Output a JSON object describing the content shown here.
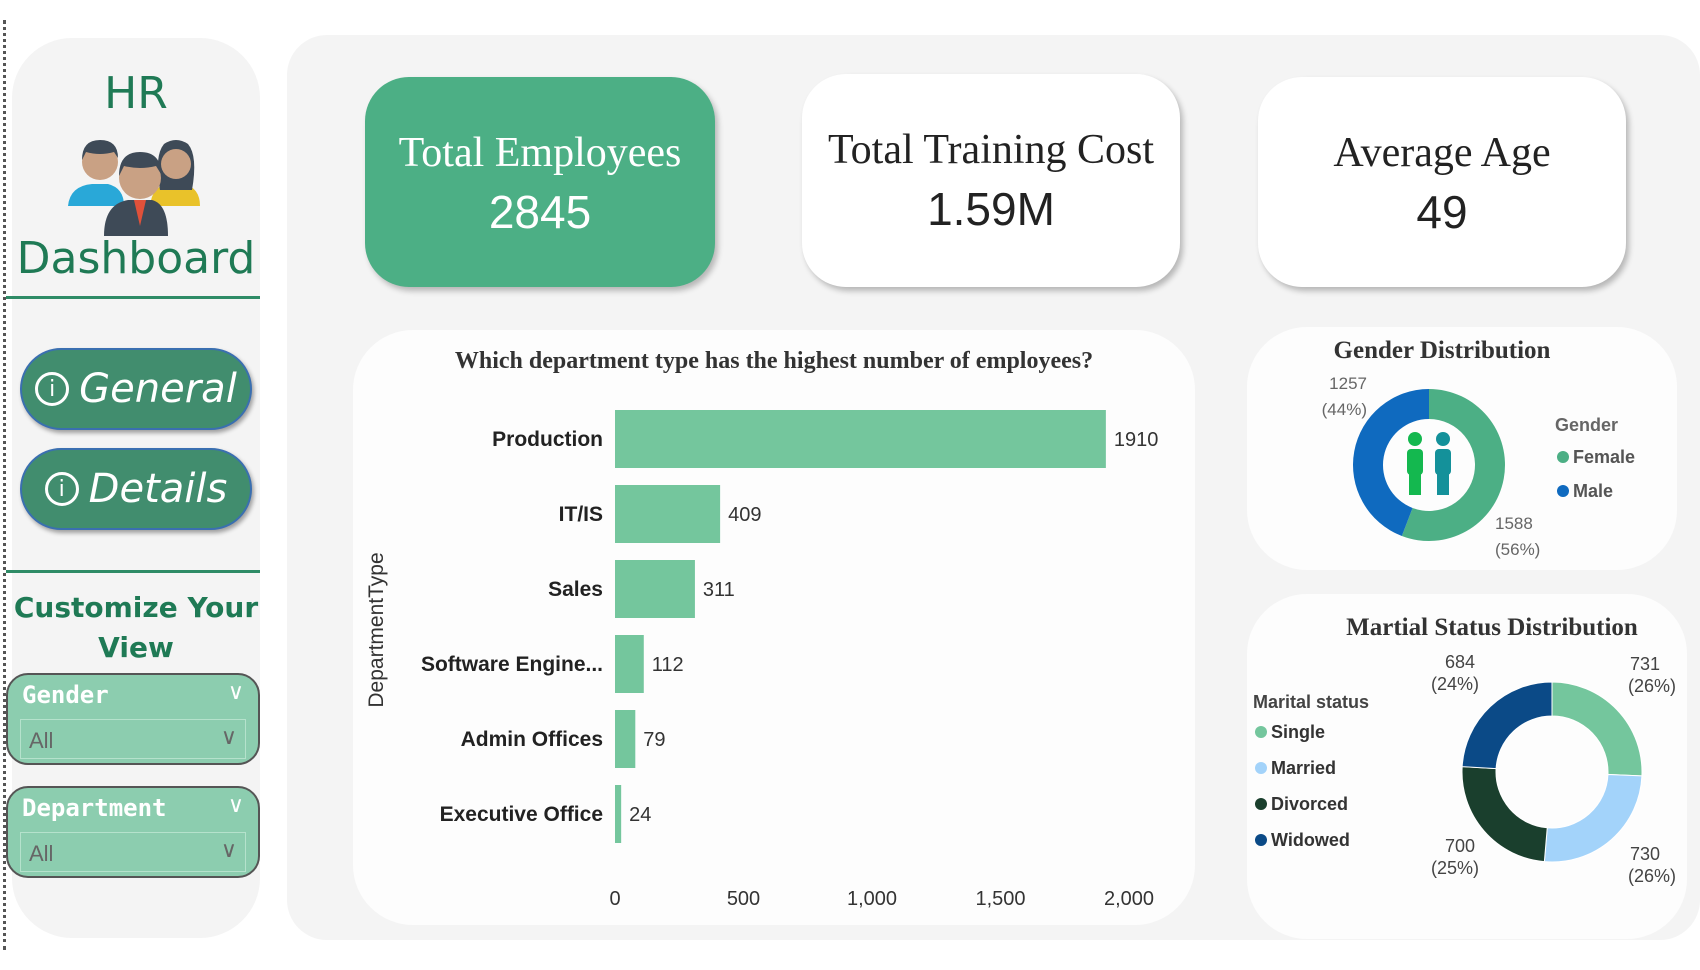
{
  "sidebar": {
    "title_top": "HR",
    "title_bottom": "Dashboard",
    "nav": [
      {
        "label": "General",
        "icon": "info-icon"
      },
      {
        "label": "Details",
        "icon": "info-icon"
      }
    ],
    "customize_line1": "Customize Your",
    "customize_line2": "View",
    "slicers": [
      {
        "label": "Gender",
        "value": "All"
      },
      {
        "label": "Department",
        "value": "All"
      }
    ]
  },
  "kpis": [
    {
      "title": "Total Employees",
      "value": "2845"
    },
    {
      "title": "Total Training Cost",
      "value": "1.59M"
    },
    {
      "title": "Average Age",
      "value": "49"
    }
  ],
  "colors": {
    "accent": "#4caf85",
    "bar": "#74c69d",
    "female": "#4caf85",
    "male": "#0f6abf",
    "single": "#74c69d",
    "married": "#a3d3fa",
    "divorced": "#1a3f2d",
    "widowed": "#0b4a87"
  },
  "chart_data": [
    {
      "type": "bar",
      "orientation": "horizontal",
      "title": "Which department type has the highest number of employees?",
      "ylabel": "DepartmentType",
      "xlabel": "",
      "categories": [
        "Production",
        "IT/IS",
        "Sales",
        "Software Engine...",
        "Admin Offices",
        "Executive Office"
      ],
      "values": [
        1910,
        409,
        311,
        112,
        79,
        24
      ],
      "xlim": [
        0,
        2000
      ],
      "xticks": [
        "0",
        "500",
        "1,000",
        "1,500",
        "2,000"
      ],
      "grid": false
    },
    {
      "type": "pie",
      "donut": true,
      "title": "Gender Distribution",
      "legend_title": "Gender",
      "legend_position": "right",
      "labels": [
        "Female",
        "Male"
      ],
      "values": [
        1588,
        1257
      ],
      "percent_labels": [
        "(56%)",
        "(44%)"
      ]
    },
    {
      "type": "pie",
      "donut": true,
      "title": "Martial Status Distribution",
      "legend_title": "Marital status",
      "legend_position": "left",
      "labels": [
        "Single",
        "Married",
        "Divorced",
        "Widowed"
      ],
      "values": [
        731,
        730,
        700,
        684
      ],
      "percent_labels": [
        "(26%)",
        "(26%)",
        "(25%)",
        "(24%)"
      ]
    }
  ]
}
